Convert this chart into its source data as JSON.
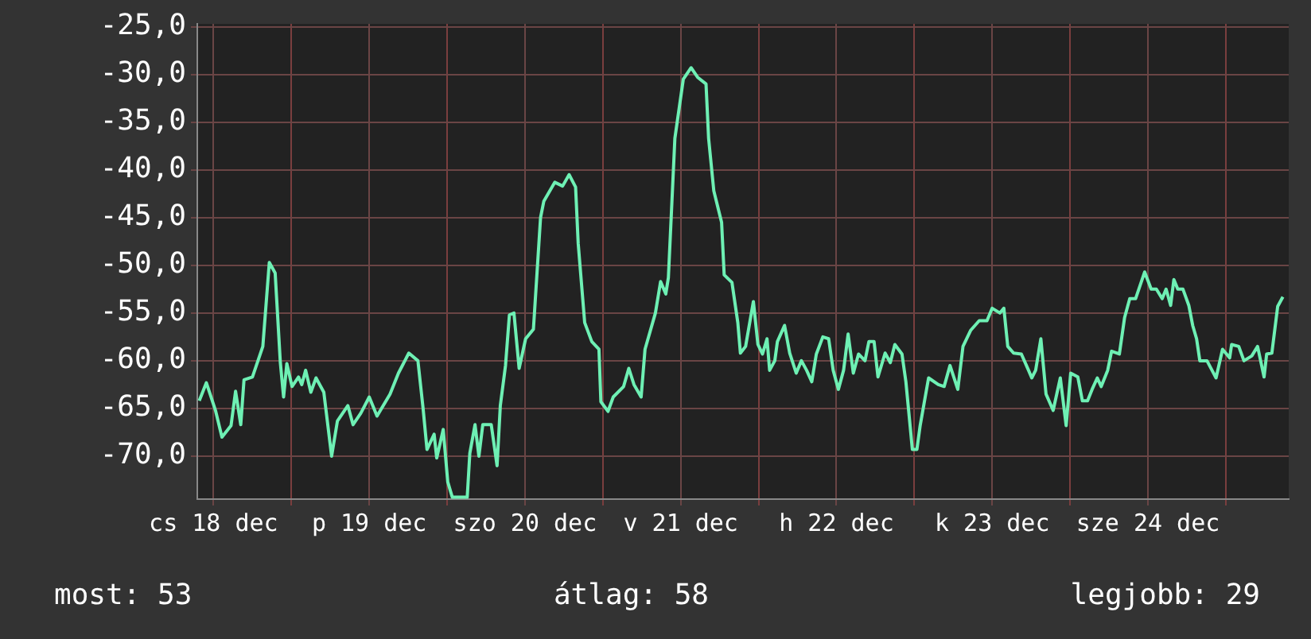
{
  "chart_data": {
    "type": "line",
    "xlim": [
      "--12-18T09:30",
      "--12-25T09:42"
    ],
    "ylim": [
      -74.5,
      -24.7
    ],
    "grid": true,
    "xticks": [
      {
        "value": "--12-18T12:00",
        "label": "cs 18 dec"
      },
      {
        "value": "--12-19T00:00",
        "label": null
      },
      {
        "value": "--12-19T12:00",
        "label": "p 19 dec"
      },
      {
        "value": "--12-20T00:00",
        "label": null
      },
      {
        "value": "--12-20T12:00",
        "label": "szo 20 dec"
      },
      {
        "value": "--12-21T00:00",
        "label": null
      },
      {
        "value": "--12-21T12:00",
        "label": "v 21 dec"
      },
      {
        "value": "--12-22T00:00",
        "label": null
      },
      {
        "value": "--12-22T12:00",
        "label": "h 22 dec"
      },
      {
        "value": "--12-23T00:00",
        "label": null
      },
      {
        "value": "--12-23T12:00",
        "label": "k 23 dec"
      },
      {
        "value": "--12-24T00:00",
        "label": null
      },
      {
        "value": "--12-24T12:00",
        "label": "sze 24 dec"
      },
      {
        "value": "--12-25T00:00",
        "label": null
      }
    ],
    "yticks": [
      {
        "value": -25,
        "label": "-25,0"
      },
      {
        "value": -30,
        "label": "-30,0"
      },
      {
        "value": -35,
        "label": "-35,0"
      },
      {
        "value": -40,
        "label": "-40,0"
      },
      {
        "value": -45,
        "label": "-45,0"
      },
      {
        "value": -50,
        "label": "-50,0"
      },
      {
        "value": -55,
        "label": "-55,0"
      },
      {
        "value": -60,
        "label": "-60,0"
      },
      {
        "value": -65,
        "label": "-65,0"
      },
      {
        "value": -70,
        "label": "-70,0"
      }
    ],
    "series": [
      {
        "color": "#6ef0b4",
        "x": [
          "--12-18T09:48",
          "--12-18T10:54",
          "--12-18T12:18",
          "--12-18T13:18",
          "--12-18T14:42",
          "--12-18T15:24",
          "--12-18T16:12",
          "--12-18T16:42",
          "--12-18T18:00",
          "--12-18T19:36",
          "--12-18T20:36",
          "--12-18T21:30",
          "--12-18T22:18",
          "--12-18T22:48",
          "--12-18T23:18",
          "--12-19T00:06",
          "--12-19T01:06",
          "--12-19T01:36",
          "--12-19T02:12",
          "--12-19T03:00",
          "--12-19T03:48",
          "--12-19T05:00",
          "--12-19T06:12",
          "--12-19T07:06",
          "--12-19T08:42",
          "--12-19T09:30",
          "--12-19T10:42",
          "--12-19T12:00",
          "--12-19T13:12",
          "--12-19T15:12",
          "--12-19T16:30",
          "--12-19T18:06",
          "--12-19T19:30",
          "--12-19T20:18",
          "--12-19T20:54",
          "--12-19T22:00",
          "--12-19T22:24",
          "--12-19T23:24",
          "--12-20T00:06",
          "--12-20T00:48",
          "--12-20T03:06",
          "--12-20T03:30",
          "--12-20T04:18",
          "--12-20T04:54",
          "--12-20T05:30",
          "--12-20T06:48",
          "--12-20T07:42",
          "--12-20T08:12",
          "--12-20T09:00",
          "--12-20T09:36",
          "--12-20T10:18",
          "--12-20T11:06",
          "--12-20T12:06",
          "--12-20T13:18",
          "--12-20T14:24",
          "--12-20T14:54",
          "--12-20T16:36",
          "--12-20T17:48",
          "--12-20T18:48",
          "--12-20T19:48",
          "--12-20T20:12",
          "--12-20T21:12",
          "--12-20T22:18",
          "--12-20T23:24",
          "--12-20T23:42",
          "--12-21T00:48",
          "--12-21T01:36",
          "--12-21T03:12",
          "--12-21T04:00",
          "--12-21T04:48",
          "--12-21T05:54",
          "--12-21T06:30",
          "--12-21T08:06",
          "--12-21T08:54",
          "--12-21T09:42",
          "--12-21T10:06",
          "--12-21T11:06",
          "--12-21T12:24",
          "--12-21T13:36",
          "--12-21T14:36",
          "--12-21T15:54",
          "--12-21T16:18",
          "--12-21T17:06",
          "--12-21T18:18",
          "--12-21T18:42",
          "--12-21T19:54",
          "--12-21T20:48",
          "--12-21T21:12",
          "--12-21T22:00",
          "--12-21T23:12",
          "--12-21T23:54",
          "--12-22T00:36",
          "--12-22T01:18",
          "--12-22T01:42",
          "--12-22T02:30",
          "--12-22T02:54",
          "--12-22T04:00",
          "--12-22T04:48",
          "--12-22T05:48",
          "--12-22T06:36",
          "--12-22T07:24",
          "--12-22T08:12",
          "--12-22T08:54",
          "--12-22T09:54",
          "--12-22T10:48",
          "--12-22T11:30",
          "--12-22T12:18",
          "--12-22T13:06",
          "--12-22T13:48",
          "--12-22T14:36",
          "--12-22T15:24",
          "--12-22T16:24",
          "--12-22T17:00",
          "--12-22T17:48",
          "--12-22T18:24",
          "--12-22T19:30",
          "--12-22T20:18",
          "--12-22T21:00",
          "--12-22T22:06",
          "--12-22T22:42",
          "--12-22T23:42",
          "--12-23T00:24",
          "--12-23T00:54",
          "--12-23T02:12",
          "--12-23T03:42",
          "--12-23T04:36",
          "--12-23T05:30",
          "--12-23T06:42",
          "--12-23T07:30",
          "--12-23T08:42",
          "--12-23T10:00",
          "--12-23T11:12",
          "--12-23T12:00",
          "--12-23T13:12",
          "--12-23T13:48",
          "--12-23T14:24",
          "--12-23T15:18",
          "--12-23T16:30",
          "--12-23T17:36",
          "--12-23T18:06",
          "--12-23T18:42",
          "--12-23T19:30",
          "--12-23T20:18",
          "--12-23T21:24",
          "--12-23T22:30",
          "--12-23T23:24",
          "--12-24T00:06",
          "--12-24T01:12",
          "--12-24T01:54",
          "--12-24T02:42",
          "--12-24T03:24",
          "--12-24T04:12",
          "--12-24T04:48",
          "--12-24T05:48",
          "--12-24T06:24",
          "--12-24T07:36",
          "--12-24T08:24",
          "--12-24T09:12",
          "--12-24T10:06",
          "--12-24T11:30",
          "--12-24T12:30",
          "--12-24T13:18",
          "--12-24T14:12",
          "--12-24T14:48",
          "--12-24T15:30",
          "--12-24T16:00",
          "--12-24T16:36",
          "--12-24T17:24",
          "--12-24T18:18",
          "--12-24T18:54",
          "--12-24T19:30",
          "--12-24T20:00",
          "--12-24T21:06",
          "--12-24T22:30",
          "--12-24T23:30",
          "--12-25T00:36",
          "--12-25T00:54",
          "--12-25T02:00",
          "--12-25T02:48",
          "--12-25T04:00",
          "--12-25T04:54",
          "--12-25T05:54",
          "--12-25T06:18",
          "--12-25T07:06",
          "--12-25T08:00",
          "--12-25T08:48"
        ],
        "values": [
          -64.2,
          -62.3,
          -65.2,
          -68.0,
          -66.8,
          -63.2,
          -66.7,
          -62.0,
          -61.7,
          -58.5,
          -49.7,
          -50.8,
          -60.2,
          -63.8,
          -60.3,
          -62.7,
          -61.7,
          -62.5,
          -61.0,
          -63.3,
          -61.8,
          -63.3,
          -70.0,
          -66.3,
          -64.7,
          -66.7,
          -65.5,
          -63.8,
          -65.8,
          -63.5,
          -61.3,
          -59.2,
          -60.0,
          -65.0,
          -69.3,
          -67.7,
          -70.2,
          -67.2,
          -72.7,
          -74.3,
          -74.3,
          -69.7,
          -66.7,
          -70.0,
          -66.7,
          -66.7,
          -71.0,
          -64.7,
          -60.5,
          -55.2,
          -55.0,
          -60.8,
          -57.7,
          -56.7,
          -45.0,
          -43.3,
          -41.3,
          -41.7,
          -40.5,
          -41.8,
          -47.7,
          -56.0,
          -58.0,
          -58.8,
          -64.3,
          -65.3,
          -63.8,
          -62.7,
          -60.8,
          -62.5,
          -63.8,
          -58.8,
          -55.0,
          -51.7,
          -53.0,
          -51.3,
          -36.7,
          -30.5,
          -29.3,
          -30.3,
          -31.0,
          -36.7,
          -42.2,
          -45.5,
          -51.0,
          -51.8,
          -56.0,
          -59.2,
          -58.5,
          -53.8,
          -58.3,
          -59.3,
          -57.7,
          -61.0,
          -60.0,
          -58.0,
          -56.3,
          -59.2,
          -61.3,
          -60.0,
          -61.0,
          -62.2,
          -59.3,
          -57.5,
          -57.7,
          -61.0,
          -63.0,
          -61.0,
          -57.2,
          -61.3,
          -59.3,
          -60.0,
          -58.0,
          -58.0,
          -61.7,
          -59.2,
          -60.2,
          -58.3,
          -59.3,
          -62.2,
          -69.3,
          -69.3,
          -66.8,
          -61.8,
          -62.5,
          -62.7,
          -60.5,
          -63.0,
          -58.5,
          -56.8,
          -55.8,
          -55.8,
          -54.5,
          -55.0,
          -54.5,
          -58.5,
          -59.2,
          -59.3,
          -61.0,
          -61.8,
          -61.0,
          -57.7,
          -63.5,
          -65.2,
          -61.8,
          -66.8,
          -61.3,
          -61.7,
          -64.2,
          -64.2,
          -63.0,
          -61.8,
          -62.7,
          -61.0,
          -59.0,
          -59.3,
          -55.5,
          -53.5,
          -53.5,
          -50.7,
          -52.5,
          -52.5,
          -53.5,
          -52.5,
          -54.2,
          -51.5,
          -52.5,
          -52.5,
          -54.2,
          -56.3,
          -57.7,
          -60.0,
          -60.0,
          -61.8,
          -58.8,
          -59.7,
          -58.3,
          -58.5,
          -60.0,
          -59.5,
          -58.5,
          -61.7,
          -59.3,
          -59.2,
          -54.3,
          -53.3
        ]
      }
    ],
    "annotations": [
      "most: 53",
      "átlag: 58",
      "legjobb: 29"
    ]
  }
}
